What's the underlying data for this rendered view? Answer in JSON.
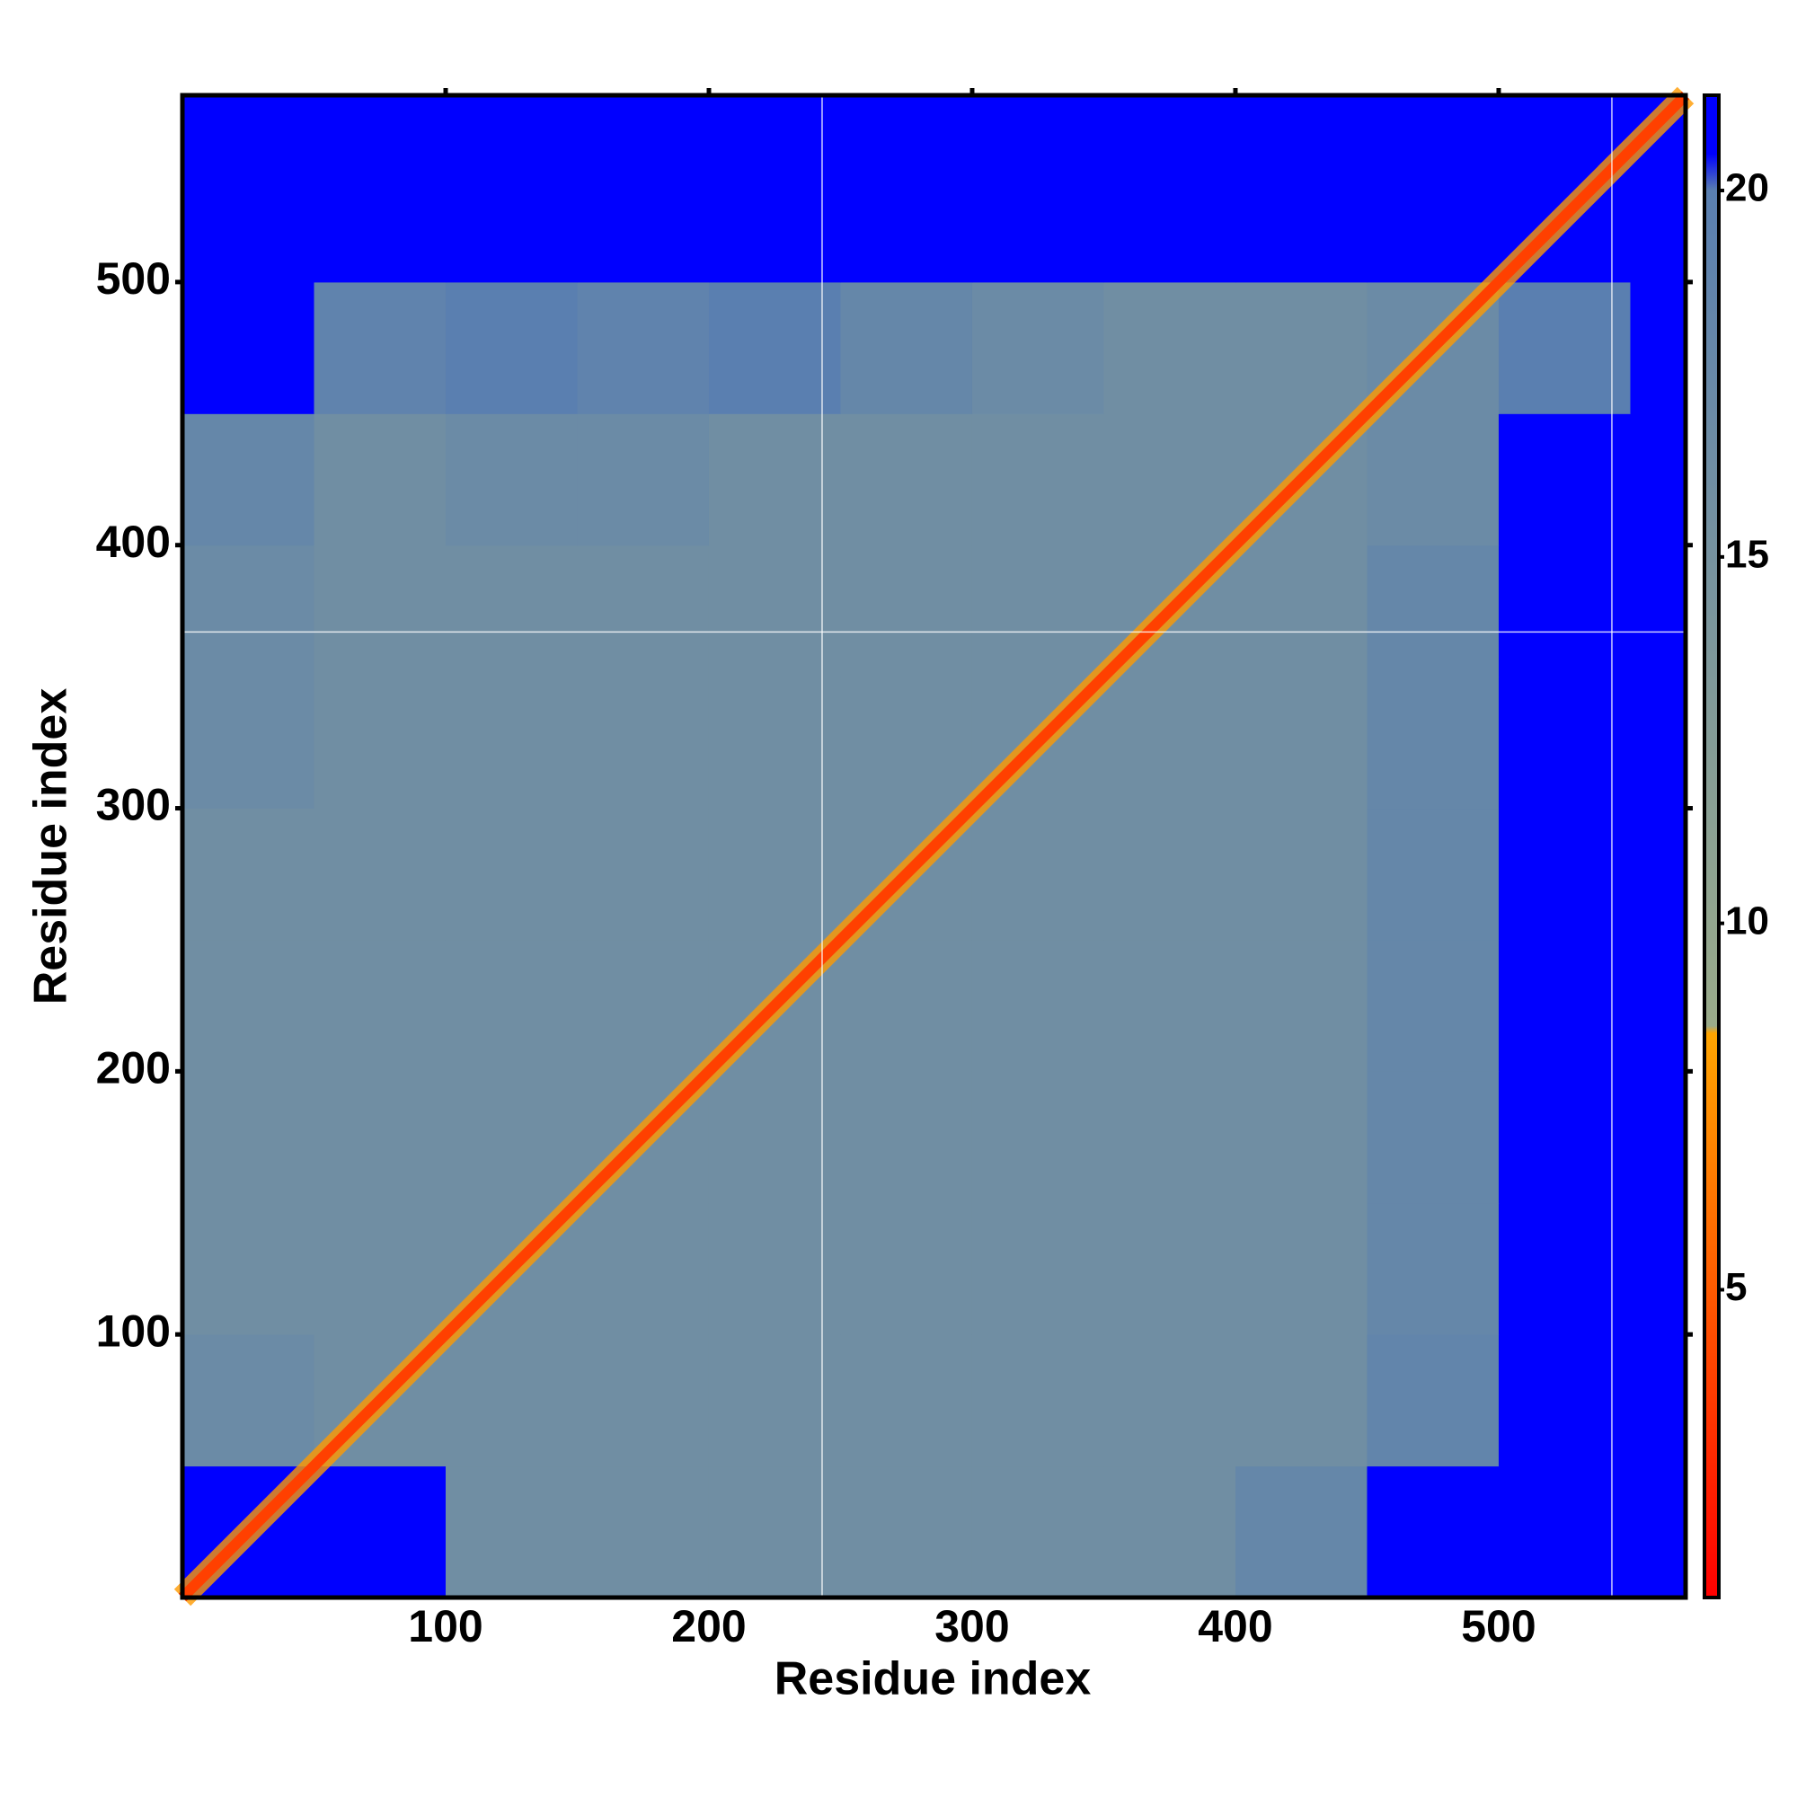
{
  "chart_data": {
    "type": "heatmap",
    "xlabel": "Residue index",
    "ylabel": "Residue index",
    "xlim": [
      0,
      571
    ],
    "ylim": [
      0,
      571
    ],
    "xticks": [
      100,
      200,
      300,
      400,
      500
    ],
    "yticks": [
      100,
      200,
      300,
      400,
      500
    ],
    "xbins": [
      0,
      50,
      100,
      150,
      200,
      250,
      300,
      350,
      400,
      450,
      500,
      550,
      571
    ],
    "ybins": [
      0,
      50,
      100,
      150,
      200,
      250,
      300,
      350,
      400,
      450,
      500,
      550,
      571
    ],
    "z": [
      [
        21,
        21,
        16,
        16,
        16,
        16,
        16,
        16,
        18,
        21,
        21,
        21
      ],
      [
        17,
        16,
        16,
        16,
        16,
        16,
        16,
        16,
        16,
        18.5,
        21,
        21
      ],
      [
        16,
        16,
        16,
        16,
        16,
        16,
        16,
        16,
        16,
        18,
        21,
        21
      ],
      [
        16,
        16,
        16,
        16,
        16,
        16,
        16,
        16,
        16,
        18,
        21,
        21
      ],
      [
        16,
        16,
        16,
        16,
        16,
        16,
        16,
        16,
        16,
        18,
        21,
        21
      ],
      [
        16,
        16,
        16,
        16,
        16,
        16,
        16,
        16,
        16,
        18,
        21,
        21
      ],
      [
        17,
        16,
        16,
        16,
        16,
        16,
        16,
        16,
        16,
        18,
        21,
        21
      ],
      [
        17,
        16,
        16,
        16,
        16,
        16,
        16,
        16,
        16,
        18,
        21,
        21
      ],
      [
        18,
        16,
        17,
        17,
        16,
        16,
        16,
        16,
        16,
        17,
        21,
        21
      ],
      [
        21,
        19,
        20,
        19,
        20,
        18,
        17,
        16,
        16,
        17,
        20,
        21
      ],
      [
        21,
        21,
        21,
        21,
        21,
        21,
        21,
        21,
        21,
        21,
        21,
        21
      ],
      [
        21,
        21,
        21,
        21,
        21,
        21,
        21,
        21,
        21,
        21,
        21,
        21
      ]
    ],
    "diagonal": {
      "x": [
        0,
        571
      ],
      "y": [
        0,
        571
      ],
      "value": 3.8
    },
    "gap_lines": {
      "x": [
        243,
        543
      ],
      "y": [
        367
      ]
    },
    "colorbar": {
      "lim": [
        0.8,
        21.3
      ],
      "ticks": [
        5,
        10,
        15,
        20
      ]
    },
    "colorscale": [
      [
        0.8,
        "#ff0000"
      ],
      [
        5,
        "#ff5a00"
      ],
      [
        8.5,
        "#ffa500"
      ],
      [
        8.6,
        "#9aab8a"
      ],
      [
        20,
        "#5a7fb0"
      ],
      [
        20.5,
        "#0000ff"
      ],
      [
        21.3,
        "#0000ff"
      ]
    ]
  }
}
